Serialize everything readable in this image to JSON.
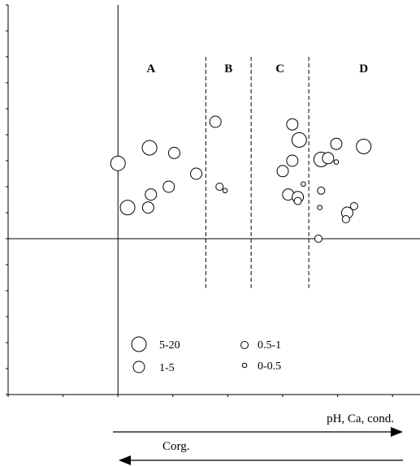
{
  "chart_data": {
    "type": "scatter",
    "title": "",
    "xlabel": "",
    "ylabel": "",
    "xlim": [
      -4,
      11
    ],
    "ylim": [
      -6,
      9
    ],
    "grid": false,
    "zones": [
      {
        "label": "A",
        "x_start": -4,
        "x_end": 3.2
      },
      {
        "label": "B",
        "x_start": 3.2,
        "x_end": 4.85
      },
      {
        "label": "C",
        "x_start": 4.85,
        "x_end": 6.95
      },
      {
        "label": "D",
        "x_start": 6.95,
        "x_end": 11
      }
    ],
    "zone_boundaries": {
      "x": [
        3.2,
        4.85,
        6.95
      ],
      "y_from": -1.9,
      "y_to": 7.0
    },
    "size_classes": [
      {
        "label": "5-20",
        "r": 9
      },
      {
        "label": "1-5",
        "r": 7
      },
      {
        "label": "0.5-1",
        "r": 4.5
      },
      {
        "label": "0-0.5",
        "r": 2.8
      }
    ],
    "points": [
      {
        "x": 0.0,
        "y": 2.9,
        "c": 0
      },
      {
        "x": 1.15,
        "y": 3.5,
        "c": 0
      },
      {
        "x": 2.05,
        "y": 3.3,
        "c": 1
      },
      {
        "x": 2.85,
        "y": 2.5,
        "c": 1
      },
      {
        "x": 1.85,
        "y": 2.0,
        "c": 1
      },
      {
        "x": 1.2,
        "y": 1.7,
        "c": 1
      },
      {
        "x": 0.35,
        "y": 1.2,
        "c": 0
      },
      {
        "x": 1.1,
        "y": 1.2,
        "c": 1
      },
      {
        "x": 3.55,
        "y": 4.5,
        "c": 1
      },
      {
        "x": 3.7,
        "y": 2.0,
        "c": 2
      },
      {
        "x": 3.9,
        "y": 1.85,
        "c": 3
      },
      {
        "x": 6.35,
        "y": 4.4,
        "c": 1
      },
      {
        "x": 6.6,
        "y": 3.8,
        "c": 0
      },
      {
        "x": 6.35,
        "y": 3.0,
        "c": 1
      },
      {
        "x": 6.0,
        "y": 2.6,
        "c": 1
      },
      {
        "x": 7.4,
        "y": 3.05,
        "c": 0
      },
      {
        "x": 7.65,
        "y": 3.1,
        "c": 1
      },
      {
        "x": 7.95,
        "y": 3.65,
        "c": 1
      },
      {
        "x": 7.95,
        "y": 2.95,
        "c": 3
      },
      {
        "x": 8.95,
        "y": 3.55,
        "c": 0
      },
      {
        "x": 6.2,
        "y": 1.7,
        "c": 1
      },
      {
        "x": 6.55,
        "y": 1.6,
        "c": 1
      },
      {
        "x": 6.75,
        "y": 2.1,
        "c": 3
      },
      {
        "x": 6.55,
        "y": 1.45,
        "c": 2
      },
      {
        "x": 7.4,
        "y": 1.85,
        "c": 2
      },
      {
        "x": 7.35,
        "y": 1.2,
        "c": 3
      },
      {
        "x": 8.35,
        "y": 1.0,
        "c": 1
      },
      {
        "x": 8.6,
        "y": 1.25,
        "c": 2
      },
      {
        "x": 8.3,
        "y": 0.75,
        "c": 2
      },
      {
        "x": 7.3,
        "y": 0.0,
        "c": 2
      }
    ],
    "legend": {
      "placement": "bottom",
      "entries": [
        "5-20",
        "1-5",
        "0.5-1",
        "0-0.5"
      ]
    },
    "arrows": [
      {
        "label": "pH, Ca, cond.",
        "direction": "right"
      },
      {
        "label": "Corg.",
        "direction": "left"
      }
    ]
  }
}
